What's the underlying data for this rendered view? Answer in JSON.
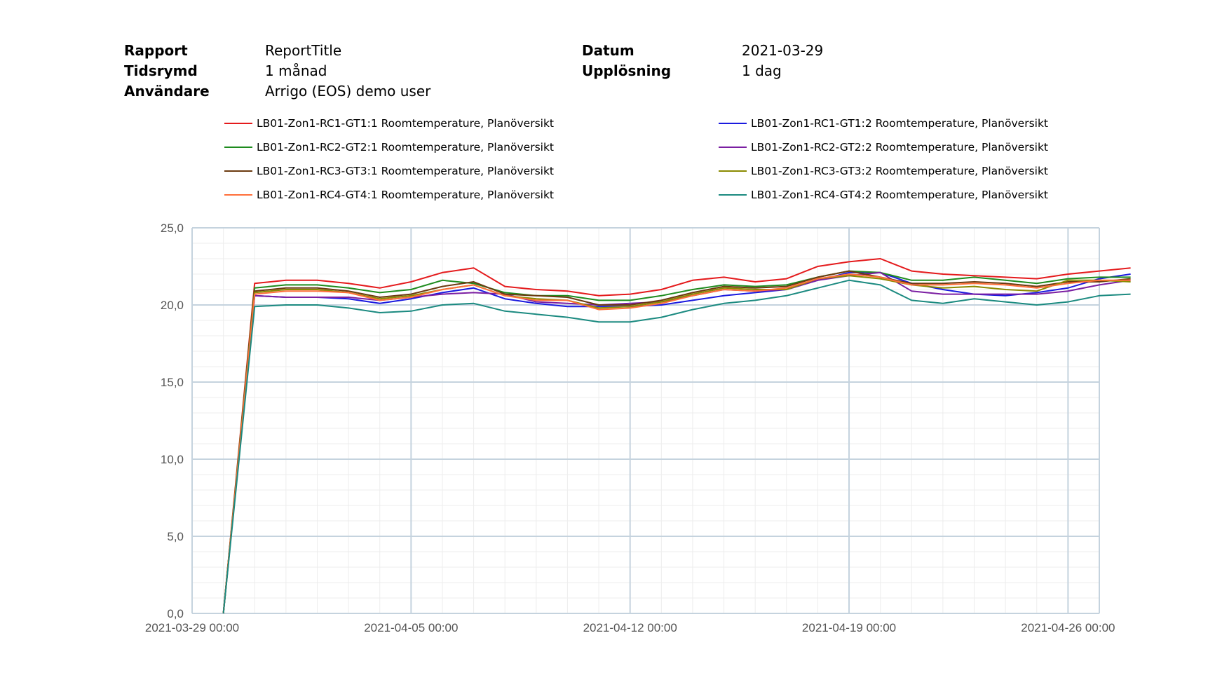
{
  "header": {
    "report_label": "Rapport",
    "report_value": "ReportTitle",
    "period_label": "Tidsrymd",
    "period_value": "1 månad",
    "user_label": "Användare",
    "user_value": "Arrigo (EOS) demo user",
    "date_label": "Datum",
    "date_value": "2021-03-29",
    "resolution_label": "Upplösning",
    "resolution_value": "1 dag"
  },
  "chart_data": {
    "type": "line",
    "title": "",
    "xlabel": "",
    "ylabel": "",
    "ylim": [
      0,
      25
    ],
    "y_ticks": [
      "0,0",
      "5,0",
      "10,0",
      "15,0",
      "20,0",
      "25,0"
    ],
    "x_ticks": [
      {
        "date": "2021-03-29",
        "label": "2021-03-29 00:00"
      },
      {
        "date": "2021-04-05",
        "label": "2021-04-05 00:00"
      },
      {
        "date": "2021-04-12",
        "label": "2021-04-12 00:00"
      },
      {
        "date": "2021-04-19",
        "label": "2021-04-19 00:00"
      },
      {
        "date": "2021-04-26",
        "label": "2021-04-26 00:00"
      }
    ],
    "xlim": [
      "2021-03-29",
      "2021-04-27"
    ],
    "grid": true,
    "legend_position": "top",
    "x": [
      "2021-03-30",
      "2021-03-31",
      "2021-04-01",
      "2021-04-02",
      "2021-04-03",
      "2021-04-04",
      "2021-04-05",
      "2021-04-06",
      "2021-04-07",
      "2021-04-08",
      "2021-04-09",
      "2021-04-10",
      "2021-04-11",
      "2021-04-12",
      "2021-04-13",
      "2021-04-14",
      "2021-04-15",
      "2021-04-16",
      "2021-04-17",
      "2021-04-18",
      "2021-04-19",
      "2021-04-20",
      "2021-04-21",
      "2021-04-22",
      "2021-04-23",
      "2021-04-24",
      "2021-04-25",
      "2021-04-26",
      "2021-04-27",
      "2021-04-28"
    ],
    "series": [
      {
        "name": "LB01-Zon1-RC1-GT1:1 Roomtemperature, Planöversikt",
        "color": "#e41a1c",
        "values": [
          0.0,
          21.4,
          21.6,
          21.6,
          21.4,
          21.1,
          21.5,
          22.1,
          22.4,
          21.2,
          21.0,
          20.9,
          20.6,
          20.7,
          21.0,
          21.6,
          21.8,
          21.5,
          21.7,
          22.5,
          22.8,
          23.0,
          22.2,
          22.0,
          21.9,
          21.8,
          21.7,
          22.0,
          22.2,
          22.4
        ]
      },
      {
        "name": "LB01-Zon1-RC1-GT1:2 Roomtemperature, Planöversikt",
        "color": "#1a1adf",
        "values": [
          0.0,
          20.6,
          20.5,
          20.5,
          20.4,
          20.1,
          20.4,
          20.8,
          21.1,
          20.4,
          20.1,
          19.9,
          19.9,
          19.9,
          20.0,
          20.3,
          20.6,
          20.8,
          21.0,
          21.6,
          22.1,
          22.1,
          21.4,
          21.0,
          20.7,
          20.6,
          20.8,
          21.1,
          21.7,
          22.0
        ]
      },
      {
        "name": "LB01-Zon1-RC2-GT2:1 Roomtemperature, Planöversikt",
        "color": "#1e8b1e",
        "values": [
          0.0,
          21.1,
          21.3,
          21.3,
          21.1,
          20.8,
          21.0,
          21.6,
          21.4,
          20.8,
          20.6,
          20.6,
          20.3,
          20.3,
          20.6,
          21.0,
          21.3,
          21.2,
          21.3,
          21.8,
          22.2,
          22.1,
          21.6,
          21.6,
          21.8,
          21.6,
          21.4,
          21.7,
          21.8,
          21.8
        ]
      },
      {
        "name": "LB01-Zon1-RC2-GT2:2 Roomtemperature, Planöversikt",
        "color": "#7b1fa2",
        "values": [
          0.0,
          20.6,
          20.5,
          20.5,
          20.5,
          20.3,
          20.5,
          20.7,
          20.8,
          20.7,
          20.2,
          20.1,
          20.0,
          20.1,
          20.2,
          20.6,
          21.0,
          20.9,
          21.0,
          21.6,
          21.9,
          22.1,
          20.9,
          20.7,
          20.7,
          20.7,
          20.7,
          20.9,
          21.3,
          21.6
        ]
      },
      {
        "name": "LB01-Zon1-RC3-GT3:1 Roomtemperature, Planöversikt",
        "color": "#6b3a10",
        "values": [
          0.0,
          20.9,
          21.1,
          21.1,
          20.9,
          20.5,
          20.7,
          21.2,
          21.5,
          20.7,
          20.6,
          20.5,
          20.0,
          20.0,
          20.3,
          20.8,
          21.2,
          21.1,
          21.2,
          21.8,
          22.2,
          21.8,
          21.4,
          21.4,
          21.5,
          21.4,
          21.2,
          21.5,
          21.5,
          21.7
        ]
      },
      {
        "name": "LB01-Zon1-RC3-GT3:2 Roomtemperature, Planöversikt",
        "color": "#8a8a00",
        "values": [
          0.0,
          20.8,
          21.0,
          21.0,
          20.8,
          20.4,
          20.6,
          21.0,
          21.3,
          20.6,
          20.4,
          20.3,
          19.8,
          19.9,
          20.2,
          20.7,
          21.1,
          21.0,
          21.0,
          21.7,
          21.9,
          21.7,
          21.3,
          21.1,
          21.2,
          21.0,
          20.9,
          21.6,
          21.6,
          21.5
        ]
      },
      {
        "name": "LB01-Zon1-RC4-GT4:1 Roomtemperature, Planöversikt",
        "color": "#ff6f3a",
        "values": [
          0.0,
          20.7,
          20.9,
          20.9,
          20.8,
          20.3,
          20.5,
          21.0,
          21.3,
          20.6,
          20.3,
          20.3,
          19.7,
          19.8,
          20.1,
          20.6,
          21.0,
          20.9,
          21.1,
          21.7,
          22.0,
          21.8,
          21.3,
          21.3,
          21.4,
          21.3,
          21.1,
          21.4,
          21.6,
          21.6
        ]
      },
      {
        "name": "LB01-Zon1-RC4-GT4:2 Roomtemperature, Planöversikt",
        "color": "#1b8a80",
        "values": [
          0.0,
          19.9,
          20.0,
          20.0,
          19.8,
          19.5,
          19.6,
          20.0,
          20.1,
          19.6,
          19.4,
          19.2,
          18.9,
          18.9,
          19.2,
          19.7,
          20.1,
          20.3,
          20.6,
          21.1,
          21.6,
          21.3,
          20.3,
          20.1,
          20.4,
          20.2,
          20.0,
          20.2,
          20.6,
          20.7
        ]
      }
    ]
  }
}
